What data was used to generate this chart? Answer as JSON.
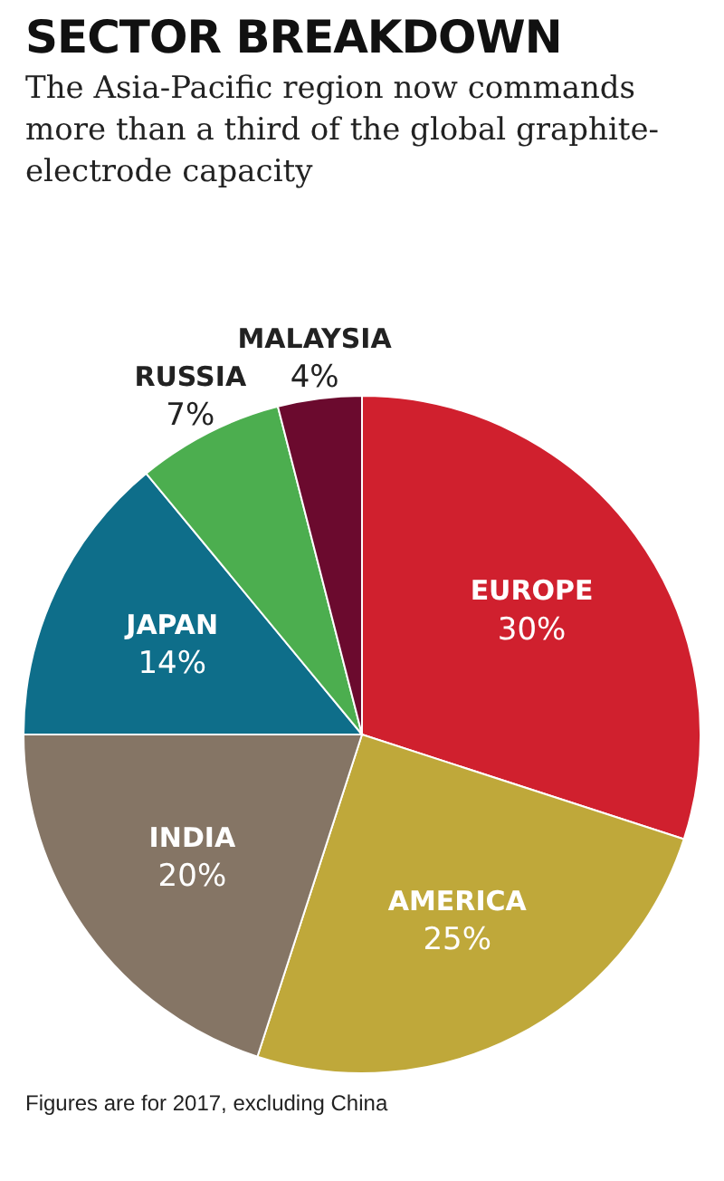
{
  "chart_data": {
    "type": "pie",
    "title": "SECTOR BREAKDOWN",
    "subtitle": "The Asia-Pacific region now commands more than a third of the global graphite-electrode capacity",
    "categories": [
      "EUROPE",
      "AMERICA",
      "INDIA",
      "JAPAN",
      "RUSSIA",
      "MALAYSIA"
    ],
    "values": [
      30,
      25,
      20,
      14,
      7,
      4
    ],
    "value_labels": [
      "30%",
      "25%",
      "20%",
      "14%",
      "7%",
      "4%"
    ],
    "colors": [
      "#d0202e",
      "#bfa83a",
      "#857565",
      "#0e6e8a",
      "#4cae4f",
      "#6b0a2e"
    ],
    "legend": false,
    "annotations": [
      "Figures are for 2017, excluding China"
    ]
  }
}
